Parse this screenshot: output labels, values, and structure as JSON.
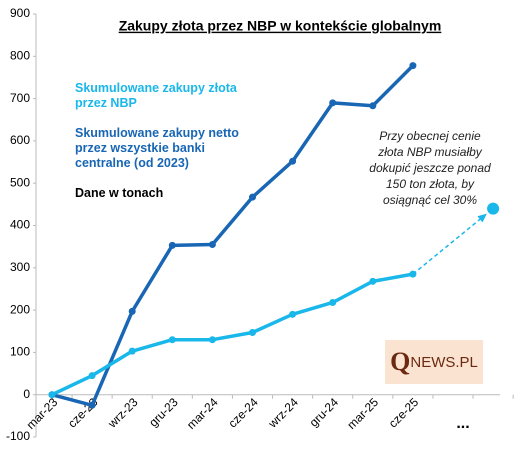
{
  "chart_data": {
    "type": "line",
    "title": "Zakupy złota przez NBP w kontekście globalnym",
    "categories": [
      "mar-23",
      "cze-23",
      "wrz-23",
      "gru-23",
      "mar-24",
      "cze-24",
      "wrz-24",
      "gru-24",
      "mar-25",
      "cze-25",
      null,
      null
    ],
    "series": [
      {
        "name": "Skumulowane zakupy netto\nprzez wszystkie  banki\ncentralne (od 2023)",
        "color": "#1866b4",
        "values": [
          0,
          -25,
          197,
          353,
          355,
          467,
          552,
          690,
          683,
          778,
          null,
          null
        ]
      },
      {
        "name": "Skumulowane zakupy złota\nprzez NBP",
        "color": "#1ab7ea",
        "values": [
          0,
          45,
          103,
          130,
          130,
          147,
          190,
          218,
          268,
          285,
          null,
          null
        ]
      },
      {
        "color": "#1ab7ea",
        "values": [
          null,
          null,
          null,
          null,
          null,
          null,
          null,
          null,
          null,
          null,
          null,
          440
        ]
      }
    ],
    "units_note": "Dane w tonach",
    "annotation": "Przy obecnej cenie\nzłota NBP musiałby\ndokupić jeszcze ponad\n150 ton złota, by\nosiągnąć cel 30%",
    "ellipsis": "...",
    "logo": {
      "q": "Q",
      "rest": "NEWS.PL"
    },
    "ylim": [
      -100,
      900
    ],
    "yticks": [
      -100,
      0,
      100,
      200,
      300,
      400,
      500,
      600,
      700,
      800,
      900
    ]
  }
}
